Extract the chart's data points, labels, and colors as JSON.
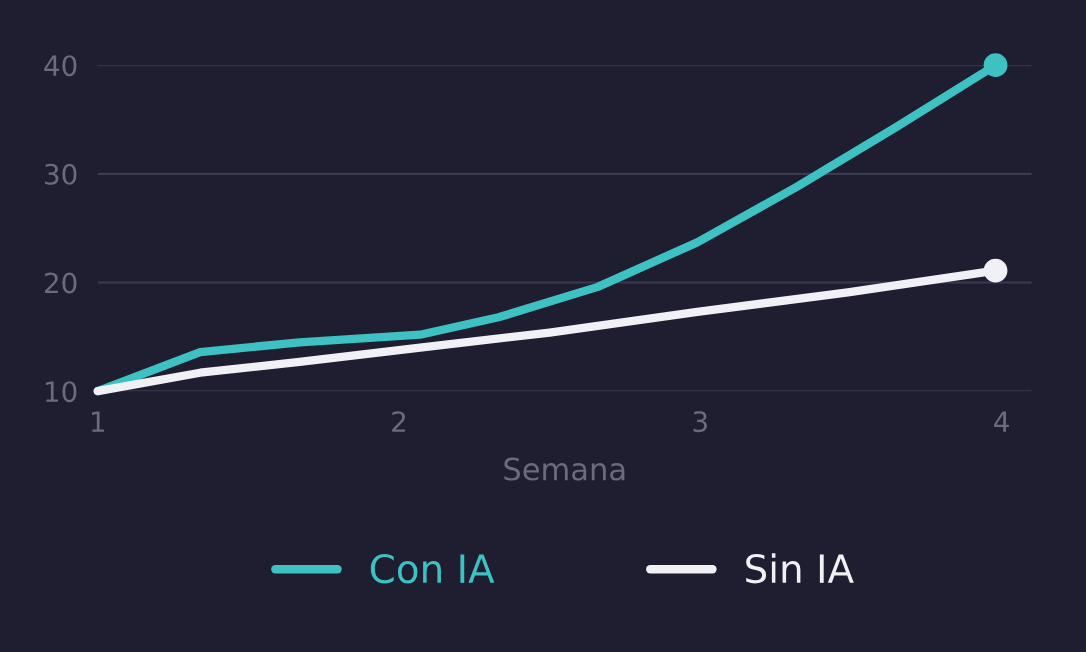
{
  "chart_data": {
    "type": "line",
    "xlabel": "Semana",
    "x": [
      1,
      1.34,
      1.67,
      2.07,
      2.33,
      2.66,
      2.99,
      3.32,
      3.65,
      3.98
    ],
    "series": [
      {
        "name": "Con IA",
        "color": "#3ec1c3",
        "values": [
          10,
          13.6,
          14.5,
          15.2,
          16.8,
          19.6,
          23.7,
          28.8,
          34.3,
          40
        ]
      },
      {
        "name": "Sin IA",
        "color": "#f0f0f5",
        "x": [
          1,
          1.34,
          1.67,
          2.07,
          2.5,
          2.99,
          3.49,
          3.98
        ],
        "values": [
          10,
          11.7,
          12.7,
          14.0,
          15.4,
          17.3,
          19.1,
          21.1
        ]
      },
      {
        "type": "scatter",
        "color": "#3ec1c3",
        "x": [
          3.98
        ],
        "values": [
          40
        ]
      },
      {
        "type": "scatter",
        "color": "#f0f0f5",
        "x": [
          3.98
        ],
        "values": [
          21.1
        ]
      }
    ],
    "xlim": [
      1,
      4.1
    ],
    "xticks": [
      1,
      2,
      3,
      4
    ],
    "ylim": [
      10,
      40
    ],
    "yticks": [
      10,
      20,
      30,
      40
    ],
    "grid": "y",
    "legend": "bottom",
    "line_style": "solid"
  }
}
